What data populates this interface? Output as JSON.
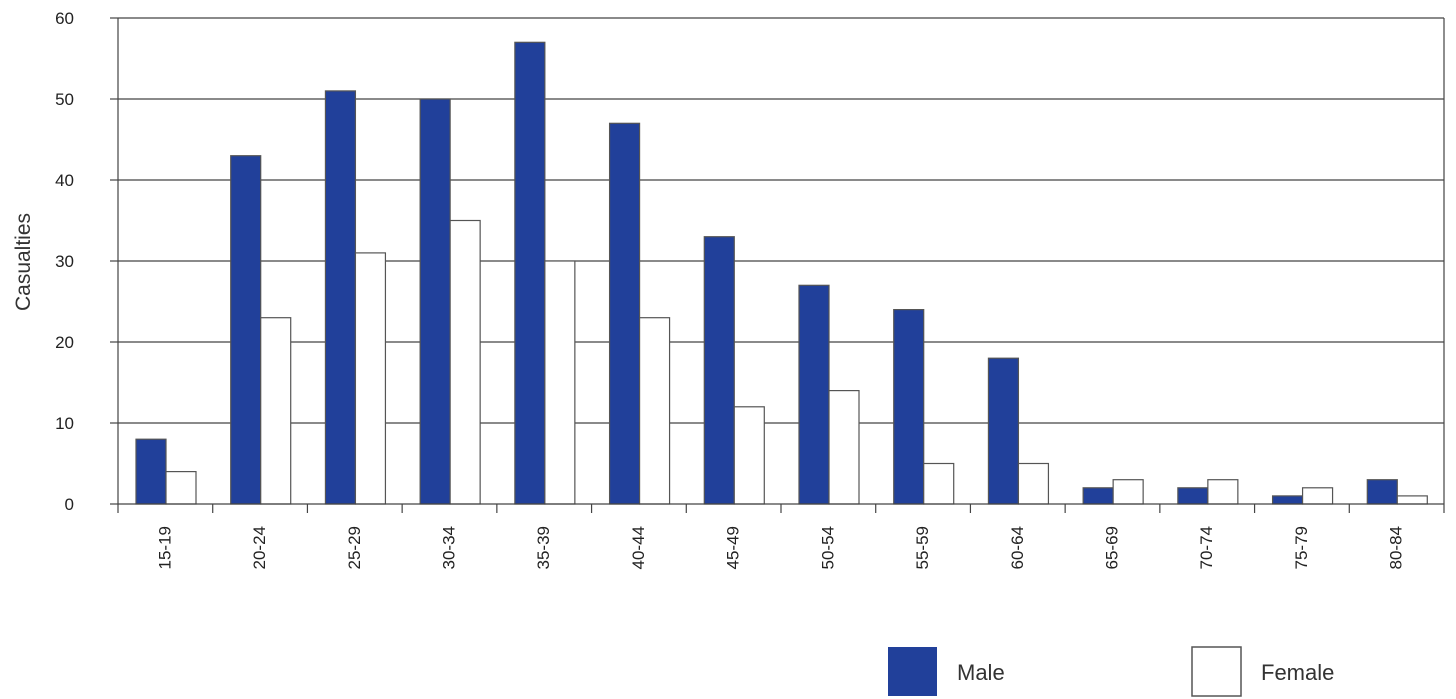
{
  "colors": {
    "male": "#21409a",
    "female": "#ffffff",
    "bar_stroke": "#555555",
    "grid": "#444444"
  },
  "chart_data": {
    "type": "bar",
    "title": "",
    "xlabel": "",
    "ylabel": "Casualties",
    "ylim": [
      0,
      60
    ],
    "yticks": [
      0,
      10,
      20,
      30,
      40,
      50,
      60
    ],
    "grid": true,
    "legend_position": "bottom-right",
    "categories": [
      "15-19",
      "20-24",
      "25-29",
      "30-34",
      "35-39",
      "40-44",
      "45-49",
      "50-54",
      "55-59",
      "60-64",
      "65-69",
      "70-74",
      "75-79",
      "80-84"
    ],
    "series": [
      {
        "name": "Male",
        "values": [
          8,
          43,
          51,
          50,
          57,
          47,
          33,
          27,
          24,
          18,
          2,
          2,
          1,
          3
        ]
      },
      {
        "name": "Female",
        "values": [
          4,
          23,
          31,
          35,
          30,
          23,
          12,
          14,
          5,
          5,
          3,
          3,
          2,
          1
        ]
      }
    ]
  }
}
